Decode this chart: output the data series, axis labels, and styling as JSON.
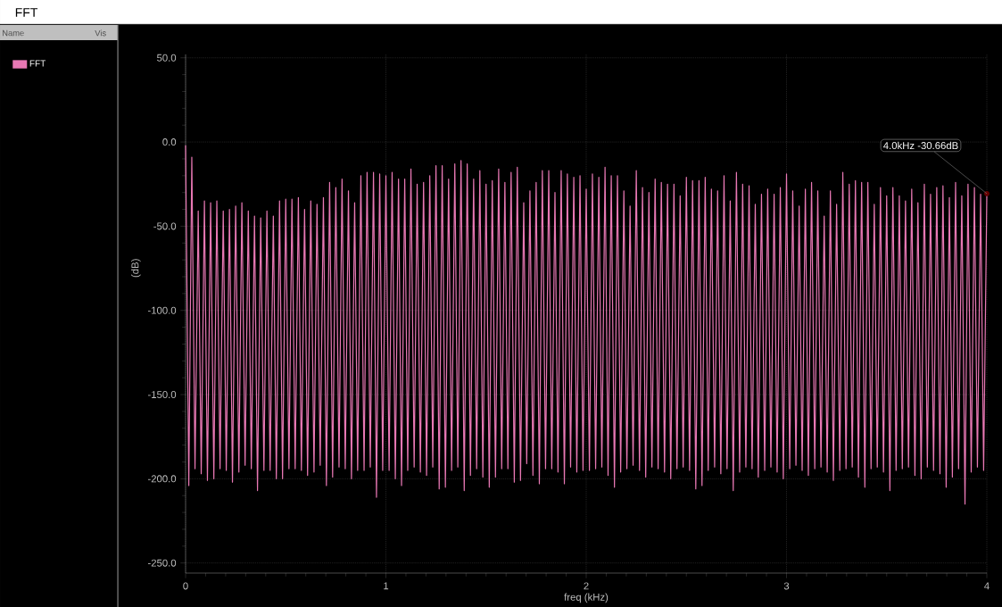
{
  "chart_data": {
    "type": "line",
    "title": "FFT",
    "xlabel": "freq (kHz)",
    "ylabel": "(dB)",
    "xlim": [
      0,
      4
    ],
    "ylim": [
      -256,
      52
    ],
    "xticks": [
      0,
      1,
      2,
      3,
      4
    ],
    "yticks": [
      {
        "value": 50,
        "label": "50.0"
      },
      {
        "value": 0,
        "label": "0.0"
      },
      {
        "value": -50,
        "label": "-50.0"
      },
      {
        "value": -100,
        "label": "-100.0"
      },
      {
        "value": -150,
        "label": "-150.0"
      },
      {
        "value": -200,
        "label": "-200.0"
      },
      {
        "value": -250,
        "label": "-250.0"
      }
    ],
    "grid": true,
    "legend": "top left",
    "annotations": [
      "Name",
      "Vis",
      {
        "text": "4.0kHz -30.66dB",
        "x": 4,
        "y": -30.66
      }
    ],
    "x": [
      0,
      0.016,
      0.031,
      0.047,
      0.063,
      0.078,
      0.094,
      0.109,
      0.125,
      0.141,
      0.156,
      0.172,
      0.188,
      0.203,
      0.219,
      0.234,
      0.25,
      0.266,
      0.281,
      0.297,
      0.313,
      0.328,
      0.344,
      0.359,
      0.375,
      0.391,
      0.406,
      0.422,
      0.438,
      0.453,
      0.469,
      0.484,
      0.5,
      0.516,
      0.531,
      0.547,
      0.563,
      0.578,
      0.594,
      0.609,
      0.625,
      0.641,
      0.656,
      0.672,
      0.688,
      0.703,
      0.719,
      0.734,
      0.75,
      0.766,
      0.781,
      0.797,
      0.813,
      0.828,
      0.844,
      0.859,
      0.875,
      0.891,
      0.906,
      0.922,
      0.938,
      0.953,
      0.969,
      0.984,
      1,
      1.016,
      1.031,
      1.047,
      1.063,
      1.078,
      1.094,
      1.109,
      1.125,
      1.141,
      1.156,
      1.172,
      1.188,
      1.203,
      1.219,
      1.234,
      1.25,
      1.266,
      1.281,
      1.297,
      1.313,
      1.328,
      1.344,
      1.359,
      1.375,
      1.391,
      1.406,
      1.422,
      1.438,
      1.453,
      1.469,
      1.484,
      1.5,
      1.516,
      1.531,
      1.547,
      1.563,
      1.578,
      1.594,
      1.609,
      1.625,
      1.641,
      1.656,
      1.672,
      1.688,
      1.703,
      1.719,
      1.734,
      1.75,
      1.766,
      1.781,
      1.797,
      1.813,
      1.828,
      1.844,
      1.859,
      1.875,
      1.891,
      1.906,
      1.922,
      1.938,
      1.953,
      1.969,
      1.984,
      2,
      2.016,
      2.031,
      2.047,
      2.063,
      2.078,
      2.094,
      2.109,
      2.125,
      2.141,
      2.156,
      2.172,
      2.188,
      2.203,
      2.219,
      2.234,
      2.25,
      2.266,
      2.281,
      2.297,
      2.313,
      2.328,
      2.344,
      2.359,
      2.375,
      2.391,
      2.406,
      2.422,
      2.438,
      2.453,
      2.469,
      2.484,
      2.5,
      2.516,
      2.531,
      2.547,
      2.563,
      2.578,
      2.594,
      2.609,
      2.625,
      2.641,
      2.656,
      2.672,
      2.688,
      2.703,
      2.719,
      2.734,
      2.75,
      2.766,
      2.781,
      2.797,
      2.813,
      2.828,
      2.844,
      2.859,
      2.875,
      2.891,
      2.906,
      2.922,
      2.938,
      2.953,
      2.969,
      2.984,
      3,
      3.016,
      3.031,
      3.047,
      3.063,
      3.078,
      3.094,
      3.109,
      3.125,
      3.141,
      3.156,
      3.172,
      3.188,
      3.203,
      3.219,
      3.234,
      3.25,
      3.266,
      3.281,
      3.297,
      3.313,
      3.328,
      3.344,
      3.359,
      3.375,
      3.391,
      3.406,
      3.422,
      3.438,
      3.453,
      3.469,
      3.484,
      3.5,
      3.516,
      3.531,
      3.547,
      3.563,
      3.578,
      3.594,
      3.609,
      3.625,
      3.641,
      3.656,
      3.672,
      3.688,
      3.703,
      3.719,
      3.734,
      3.75,
      3.766,
      3.781,
      3.797,
      3.813,
      3.828,
      3.844,
      3.859,
      3.875,
      3.891,
      3.906,
      3.922,
      3.938,
      3.953,
      3.969,
      3.984,
      4
    ],
    "series": [
      {
        "name": "FFT",
        "color": "#e878b4",
        "values": [
          -2,
          -204,
          -9,
          -194,
          -41,
          -197,
          -35,
          -201,
          -36,
          -200,
          -35,
          -194,
          -41,
          -195,
          -40,
          -202,
          -38,
          -196,
          -36,
          -192,
          -41,
          -194,
          -44,
          -207,
          -45,
          -195,
          -41,
          -195,
          -44,
          -200,
          -35,
          -200,
          -34,
          -194,
          -34,
          -194,
          -33,
          -195,
          -40,
          -198,
          -35,
          -196,
          -37,
          -192,
          -33,
          -204,
          -24,
          -199,
          -27,
          -193,
          -22,
          -194,
          -29,
          -200,
          -36,
          -195,
          -20,
          -195,
          -18,
          -193,
          -18,
          -211,
          -19,
          -195,
          -20,
          -195,
          -18,
          -200,
          -22,
          -204,
          -22,
          -195,
          -16,
          -193,
          -25,
          -196,
          -24,
          -198,
          -20,
          -193,
          -14,
          -206,
          -14,
          -205,
          -22,
          -195,
          -13,
          -193,
          -11,
          -207,
          -13,
          -198,
          -22,
          -194,
          -17,
          -199,
          -25,
          -205,
          -23,
          -199,
          -16,
          -194,
          -24,
          -194,
          -18,
          -202,
          -15,
          -201,
          -36,
          -191,
          -29,
          -198,
          -24,
          -203,
          -17,
          -194,
          -17,
          -194,
          -30,
          -196,
          -17,
          -203,
          -19,
          -193,
          -21,
          -196,
          -20,
          -195,
          -28,
          -195,
          -19,
          -194,
          -21,
          -193,
          -15,
          -198,
          -20,
          -205,
          -20,
          -196,
          -29,
          -194,
          -38,
          -192,
          -17,
          -195,
          -27,
          -199,
          -30,
          -193,
          -22,
          -194,
          -24,
          -196,
          -25,
          -200,
          -25,
          -194,
          -32,
          -193,
          -21,
          -195,
          -23,
          -206,
          -23,
          -204,
          -21,
          -195,
          -28,
          -193,
          -29,
          -197,
          -20,
          -194,
          -35,
          -207,
          -18,
          -196,
          -25,
          -193,
          -26,
          -194,
          -37,
          -199,
          -31,
          -195,
          -28,
          -193,
          -31,
          -196,
          -27,
          -200,
          -19,
          -194,
          -29,
          -192,
          -38,
          -195,
          -28,
          -198,
          -24,
          -194,
          -29,
          -193,
          -44,
          -196,
          -29,
          -201,
          -37,
          -195,
          -18,
          -194,
          -25,
          -193,
          -23,
          -199,
          -24,
          -205,
          -24,
          -194,
          -37,
          -193,
          -27,
          -196,
          -32,
          -207,
          -27,
          -195,
          -32,
          -194,
          -35,
          -193,
          -28,
          -198,
          -36,
          -200,
          -25,
          -193,
          -31,
          -195,
          -27,
          -197,
          -26,
          -205,
          -33,
          -199,
          -24,
          -194,
          -32,
          -215,
          -25,
          -196,
          -27,
          -193,
          -31,
          -195,
          -30.66
        ]
      }
    ]
  }
}
